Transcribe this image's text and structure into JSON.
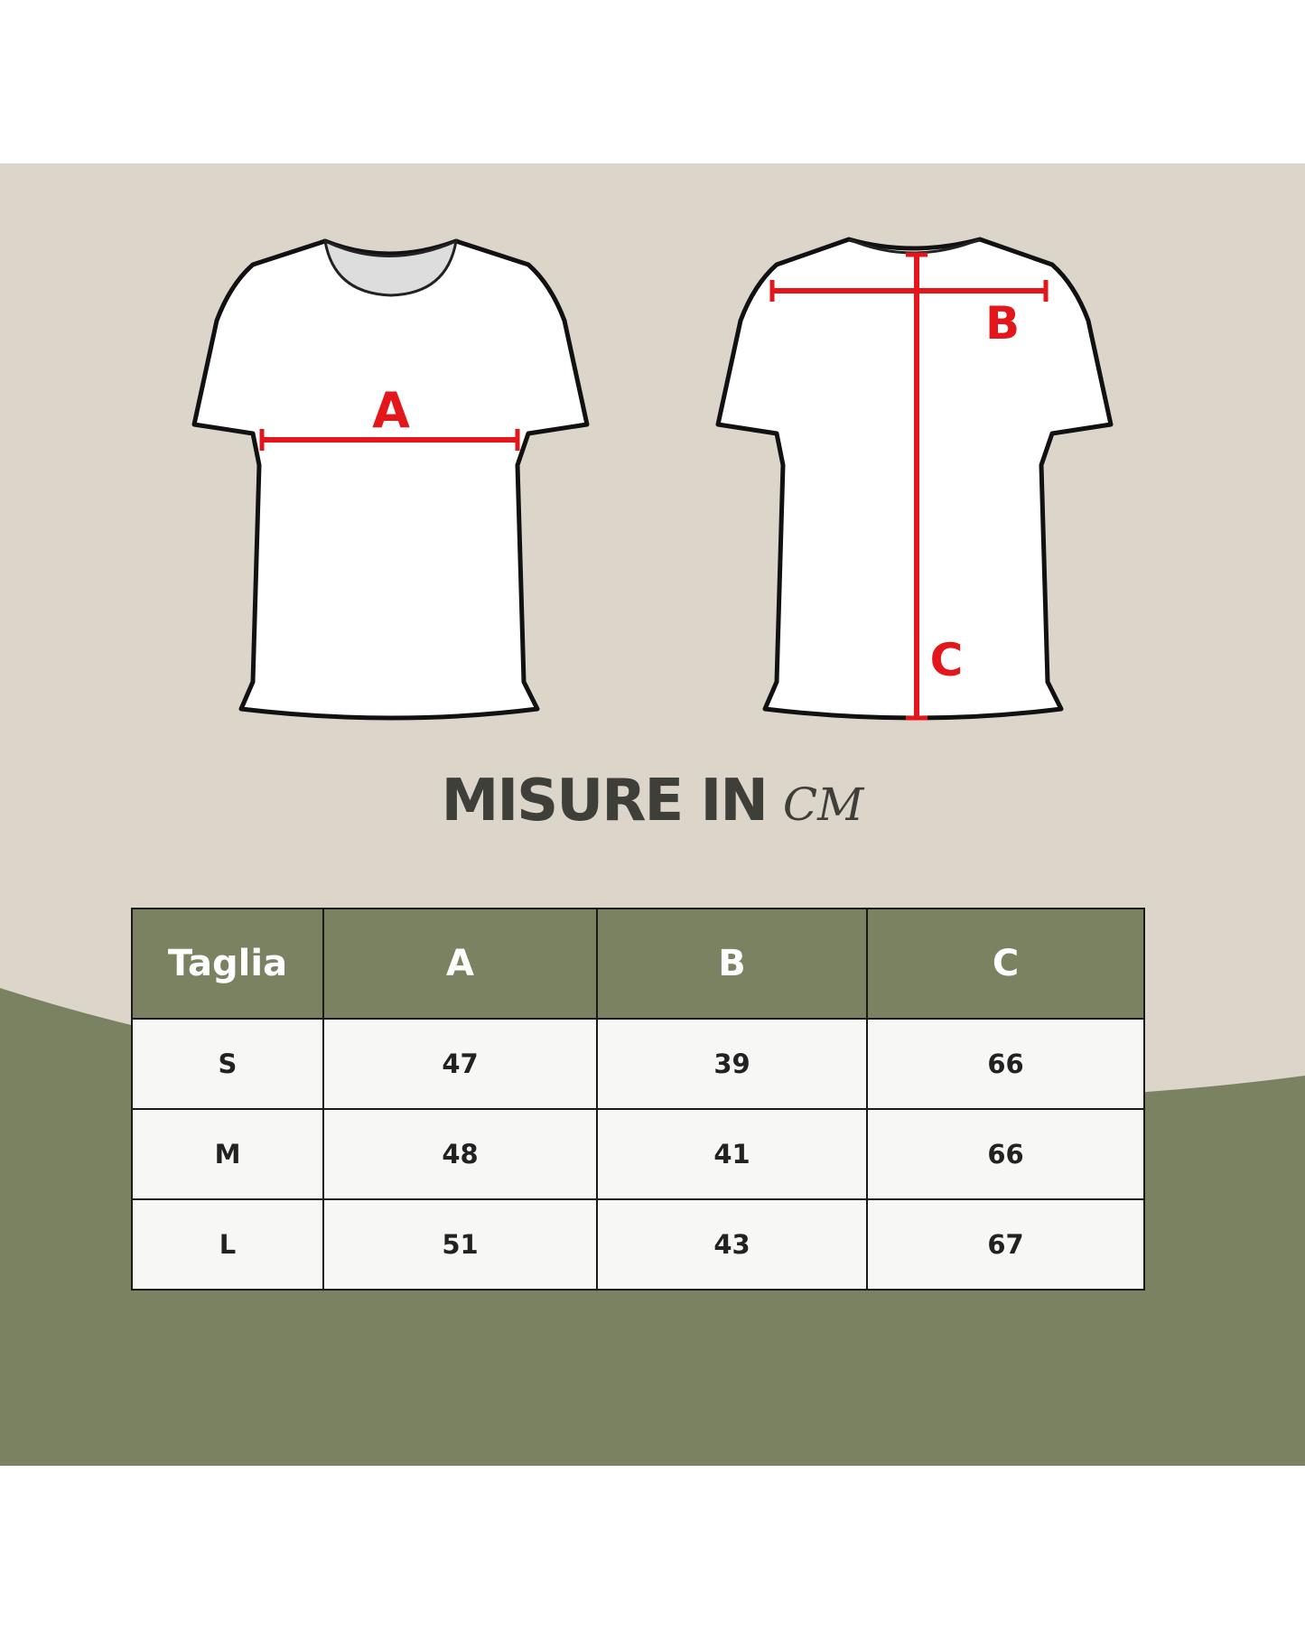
{
  "colors": {
    "beige": "#dcd5ca",
    "green": "#7a8262",
    "measure_red": "#e3161b",
    "white": "#ffffff"
  },
  "diagram": {
    "labels": {
      "a": "A",
      "b": "B",
      "c": "C"
    }
  },
  "title": {
    "main": "MISURE IN",
    "unit": "CM"
  },
  "table": {
    "headers": [
      "Taglia",
      "A",
      "B",
      "C"
    ],
    "rows": [
      [
        "S",
        "47",
        "39",
        "66"
      ],
      [
        "M",
        "48",
        "41",
        "66"
      ],
      [
        "L",
        "51",
        "43",
        "67"
      ]
    ]
  }
}
